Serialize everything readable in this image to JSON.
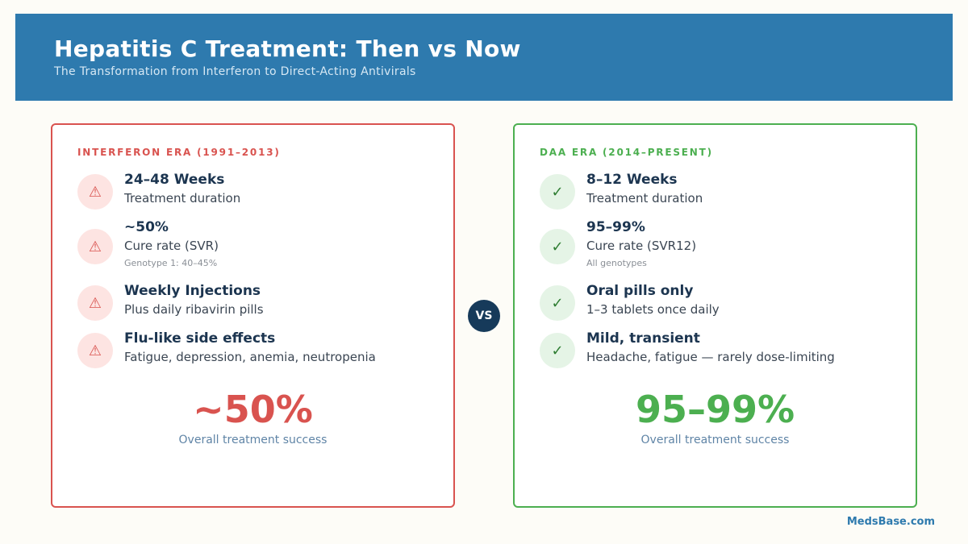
{
  "header": {
    "title": "Hepatitis C Treatment: Then vs Now",
    "subtitle": "The Transformation from Interferon to Direct-Acting Antivirals"
  },
  "left": {
    "era_label": "INTERFERON ERA (1991–2013)",
    "icon": "warning-icon",
    "items": [
      {
        "title": "24–48 Weeks",
        "desc": "Treatment duration"
      },
      {
        "title": "~50%",
        "desc": "Cure rate (SVR)",
        "note": "Genotype 1: 40–45%"
      },
      {
        "title": "Weekly Injections",
        "desc": "Plus daily ribavirin pills"
      },
      {
        "title": "Flu-like side effects",
        "desc": "Fatigue, depression, anemia, neutropenia"
      }
    ],
    "big_stat": "~50%",
    "big_caption": "Overall treatment success",
    "accent": "#d9534f"
  },
  "right": {
    "era_label": "DAA ERA (2014–PRESENT)",
    "icon": "check-icon",
    "items": [
      {
        "title": "8–12 Weeks",
        "desc": "Treatment duration"
      },
      {
        "title": "95–99%",
        "desc": "Cure rate (SVR12)",
        "note": "All genotypes"
      },
      {
        "title": "Oral pills only",
        "desc": "1–3 tablets once daily"
      },
      {
        "title": "Mild, transient",
        "desc": "Headache, fatigue — rarely dose-limiting"
      }
    ],
    "big_stat": "95–99%",
    "big_caption": "Overall treatment success",
    "accent": "#4caf50"
  },
  "vs_label": "VS",
  "footer": "MedsBase.com"
}
